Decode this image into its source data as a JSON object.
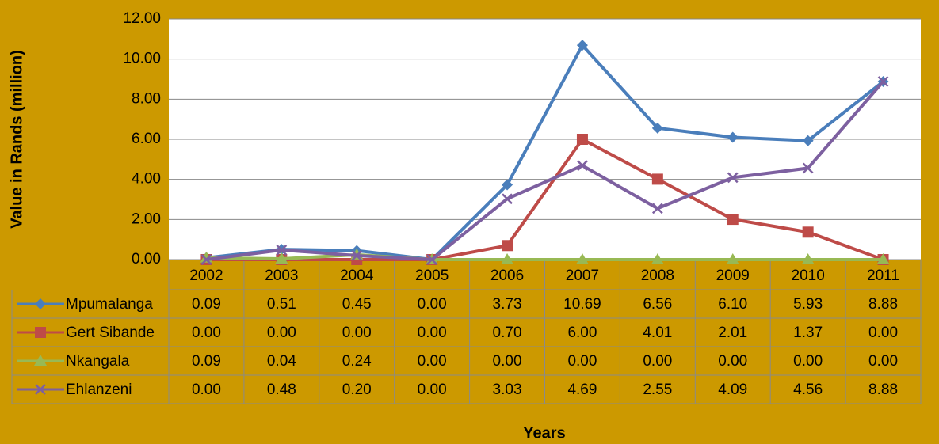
{
  "chart_data": {
    "type": "line",
    "y_label": "Value in Rands (million)",
    "x_label": "Years",
    "categories": [
      "2002",
      "2003",
      "2004",
      "2005",
      "2006",
      "2007",
      "2008",
      "2009",
      "2010",
      "2011"
    ],
    "series": [
      {
        "name": "Mpumalanga",
        "color": "#4a7ebb",
        "marker": "diamond",
        "values": [
          0.09,
          0.51,
          0.45,
          0,
          3.73,
          10.69,
          6.56,
          6.1,
          5.93,
          8.88
        ],
        "value_labels": [
          "0.09",
          "0.51",
          "0.45",
          "0.00",
          "3.73",
          "10.69",
          "6.56",
          "6.10",
          "5.93",
          "8.88"
        ]
      },
      {
        "name": "Gert Sibande",
        "color": "#be4b48",
        "marker": "square",
        "values": [
          0,
          0,
          0,
          0,
          0.7,
          6,
          4.01,
          2.01,
          1.37,
          0
        ],
        "value_labels": [
          "0.00",
          "0.00",
          "0.00",
          "0.00",
          "0.70",
          "6.00",
          "4.01",
          "2.01",
          "1.37",
          "0.00"
        ]
      },
      {
        "name": "Nkangala",
        "color": "#98b954",
        "marker": "triangle",
        "values": [
          0.09,
          0.04,
          0.24,
          0,
          0,
          0,
          0,
          0,
          0,
          0
        ],
        "value_labels": [
          "0.09",
          "0.04",
          "0.24",
          "0.00",
          "0.00",
          "0.00",
          "0.00",
          "0.00",
          "0.00",
          "0.00"
        ]
      },
      {
        "name": "Ehlanzeni",
        "color": "#7d60a0",
        "marker": "x",
        "values": [
          0,
          0.48,
          0.2,
          0,
          3.03,
          4.69,
          2.55,
          4.09,
          4.56,
          8.88
        ],
        "value_labels": [
          "0.00",
          "0.48",
          "0.20",
          "0.00",
          "3.03",
          "4.69",
          "2.55",
          "4.09",
          "4.56",
          "8.88"
        ]
      }
    ],
    "ylim": [
      0,
      12
    ],
    "yticks": [
      {
        "value": 0,
        "label": "0.00"
      },
      {
        "value": 2,
        "label": "2.00"
      },
      {
        "value": 4,
        "label": "4.00"
      },
      {
        "value": 6,
        "label": "6.00"
      },
      {
        "value": 8,
        "label": "8.00"
      },
      {
        "value": 10,
        "label": "10.00"
      },
      {
        "value": 12,
        "label": "12.00"
      }
    ],
    "grid": true
  }
}
